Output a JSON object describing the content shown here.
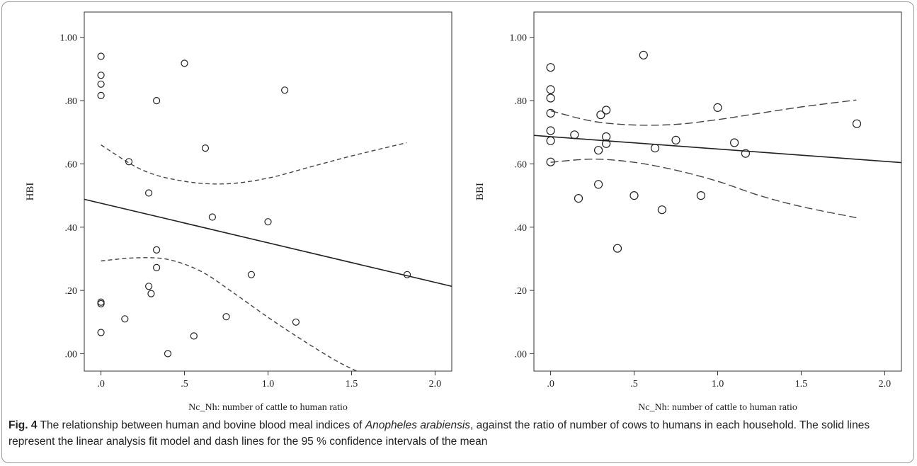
{
  "caption": {
    "label": "Fig. 4",
    "text_before": " The relationship between human and bovine blood meal indices of ",
    "species": "Anopheles arabiensis",
    "text_after": ", against the ratio of number of cows to humans in each household. The solid lines represent the linear analysis fit model and dash lines for the 95 % confidence intervals of the mean"
  },
  "chart_data": [
    {
      "type": "scatter",
      "title": "",
      "xlabel": "Nc_Nh: number of cattle to human ratio",
      "ylabel": "HBI",
      "xlim": [
        -0.1,
        2.1
      ],
      "ylim": [
        -0.055,
        1.08
      ],
      "xticks": [
        0,
        0.5,
        1,
        1.5,
        2
      ],
      "xtick_labels": [
        ".0",
        ".5",
        "1.0",
        "1.5",
        "2.0"
      ],
      "yticks": [
        0,
        0.2,
        0.4,
        0.6,
        0.8,
        1
      ],
      "ytick_labels": [
        ".00",
        ".20",
        ".40",
        ".60",
        ".80",
        "1.00"
      ],
      "points": [
        {
          "x": 0,
          "y": 0.94
        },
        {
          "x": 0,
          "y": 0.88
        },
        {
          "x": 0,
          "y": 0.852
        },
        {
          "x": 0,
          "y": 0.816
        },
        {
          "x": 0,
          "y": 0.163
        },
        {
          "x": 0,
          "y": 0.158
        },
        {
          "x": 0,
          "y": 0.067
        },
        {
          "x": 0.143,
          "y": 0.11
        },
        {
          "x": 0.167,
          "y": 0.607
        },
        {
          "x": 0.286,
          "y": 0.508
        },
        {
          "x": 0.286,
          "y": 0.213
        },
        {
          "x": 0.3,
          "y": 0.19
        },
        {
          "x": 0.333,
          "y": 0.8
        },
        {
          "x": 0.333,
          "y": 0.328
        },
        {
          "x": 0.333,
          "y": 0.272
        },
        {
          "x": 0.4,
          "y": 0.0
        },
        {
          "x": 0.5,
          "y": 0.918
        },
        {
          "x": 0.556,
          "y": 0.056
        },
        {
          "x": 0.625,
          "y": 0.65
        },
        {
          "x": 0.667,
          "y": 0.432
        },
        {
          "x": 0.75,
          "y": 0.117
        },
        {
          "x": 0.9,
          "y": 0.25
        },
        {
          "x": 1.0,
          "y": 0.417
        },
        {
          "x": 1.1,
          "y": 0.833
        },
        {
          "x": 1.167,
          "y": 0.1
        },
        {
          "x": 1.833,
          "y": 0.25
        }
      ],
      "fit_line": [
        {
          "x": -0.1,
          "y": 0.488
        },
        {
          "x": 2.1,
          "y": 0.213
        }
      ],
      "ci_upper": [
        {
          "x": 0,
          "y": 0.66
        },
        {
          "x": 0.25,
          "y": 0.58
        },
        {
          "x": 0.5,
          "y": 0.545
        },
        {
          "x": 0.75,
          "y": 0.537
        },
        {
          "x": 1.0,
          "y": 0.555
        },
        {
          "x": 1.25,
          "y": 0.59
        },
        {
          "x": 1.5,
          "y": 0.625
        },
        {
          "x": 1.83,
          "y": 0.667
        }
      ],
      "ci_lower": [
        {
          "x": 0,
          "y": 0.293
        },
        {
          "x": 0.2,
          "y": 0.303
        },
        {
          "x": 0.4,
          "y": 0.298
        },
        {
          "x": 0.6,
          "y": 0.26
        },
        {
          "x": 0.8,
          "y": 0.19
        },
        {
          "x": 1.0,
          "y": 0.115
        },
        {
          "x": 1.2,
          "y": 0.045
        },
        {
          "x": 1.4,
          "y": -0.02
        },
        {
          "x": 1.53,
          "y": -0.055
        }
      ]
    },
    {
      "type": "scatter",
      "title": "",
      "xlabel": "Nc_Nh: number of cattle to human ratio",
      "ylabel": "BBI",
      "xlim": [
        -0.1,
        2.1
      ],
      "ylim": [
        -0.055,
        1.08
      ],
      "xticks": [
        0,
        0.5,
        1,
        1.5,
        2
      ],
      "xtick_labels": [
        ".0",
        ".5",
        "1.0",
        "1.5",
        "2.0"
      ],
      "yticks": [
        0,
        0.2,
        0.4,
        0.6,
        0.8,
        1
      ],
      "ytick_labels": [
        ".00",
        ".20",
        ".40",
        ".60",
        ".80",
        "1.00"
      ],
      "points": [
        {
          "x": 0,
          "y": 0.905
        },
        {
          "x": 0,
          "y": 0.835
        },
        {
          "x": 0,
          "y": 0.808
        },
        {
          "x": 0,
          "y": 0.76
        },
        {
          "x": 0,
          "y": 0.705
        },
        {
          "x": 0,
          "y": 0.673
        },
        {
          "x": 0,
          "y": 0.606
        },
        {
          "x": 0.143,
          "y": 0.692
        },
        {
          "x": 0.167,
          "y": 0.491
        },
        {
          "x": 0.286,
          "y": 0.643
        },
        {
          "x": 0.286,
          "y": 0.535
        },
        {
          "x": 0.3,
          "y": 0.755
        },
        {
          "x": 0.333,
          "y": 0.77
        },
        {
          "x": 0.333,
          "y": 0.686
        },
        {
          "x": 0.333,
          "y": 0.664
        },
        {
          "x": 0.4,
          "y": 0.333
        },
        {
          "x": 0.5,
          "y": 0.5
        },
        {
          "x": 0.556,
          "y": 0.944
        },
        {
          "x": 0.625,
          "y": 0.65
        },
        {
          "x": 0.667,
          "y": 0.455
        },
        {
          "x": 0.75,
          "y": 0.675
        },
        {
          "x": 0.9,
          "y": 0.5
        },
        {
          "x": 1.0,
          "y": 0.778
        },
        {
          "x": 1.1,
          "y": 0.667
        },
        {
          "x": 1.167,
          "y": 0.633
        },
        {
          "x": 1.833,
          "y": 0.727
        }
      ],
      "fit_line": [
        {
          "x": -0.1,
          "y": 0.69
        },
        {
          "x": 2.1,
          "y": 0.604
        }
      ],
      "ci_upper": [
        {
          "x": 0,
          "y": 0.768
        },
        {
          "x": 0.25,
          "y": 0.735
        },
        {
          "x": 0.5,
          "y": 0.723
        },
        {
          "x": 0.75,
          "y": 0.725
        },
        {
          "x": 1.0,
          "y": 0.74
        },
        {
          "x": 1.25,
          "y": 0.76
        },
        {
          "x": 1.5,
          "y": 0.78
        },
        {
          "x": 1.83,
          "y": 0.802
        }
      ],
      "ci_lower": [
        {
          "x": 0,
          "y": 0.605
        },
        {
          "x": 0.25,
          "y": 0.615
        },
        {
          "x": 0.5,
          "y": 0.605
        },
        {
          "x": 0.75,
          "y": 0.58
        },
        {
          "x": 1.0,
          "y": 0.545
        },
        {
          "x": 1.25,
          "y": 0.5
        },
        {
          "x": 1.5,
          "y": 0.465
        },
        {
          "x": 1.83,
          "y": 0.43
        }
      ]
    }
  ]
}
